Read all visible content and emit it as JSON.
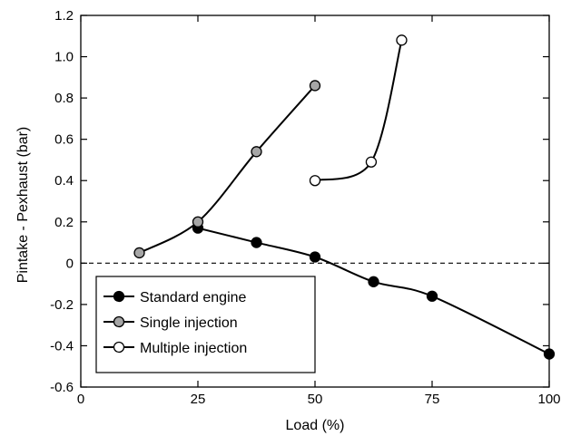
{
  "chart_data": {
    "type": "line",
    "title": "",
    "xlabel": "Load (%)",
    "ylabel": "Pintake - Pexhaust (bar)",
    "xlim": [
      0,
      100
    ],
    "ylim": [
      -0.6,
      1.2
    ],
    "x_ticks": [
      0,
      25,
      50,
      75,
      100
    ],
    "x_tick_labels": [
      "0",
      "25",
      "50",
      "75",
      "100"
    ],
    "y_ticks": [
      -0.6,
      -0.4,
      -0.2,
      0,
      0.2,
      0.4,
      0.6,
      0.8,
      1.0,
      1.2
    ],
    "y_tick_labels": [
      "-0.6",
      "-0.4",
      "-0.2",
      "0",
      "0.2",
      "0.4",
      "0.6",
      "0.8",
      "1.0",
      "1.2"
    ],
    "reference_line": {
      "y": 0,
      "style": "dashed"
    },
    "grid": false,
    "legend_position": "bottom-left",
    "series": [
      {
        "name": "Standard engine",
        "marker": "filled-circle",
        "marker_fill": "#000000",
        "x": [
          25,
          37.5,
          50,
          62.5,
          75,
          100
        ],
        "y": [
          0.17,
          0.1,
          0.03,
          -0.09,
          -0.16,
          -0.44
        ]
      },
      {
        "name": "Single injection",
        "marker": "gray-circle",
        "marker_fill": "#a6a6a6",
        "x": [
          12.5,
          25,
          37.5,
          50
        ],
        "y": [
          0.05,
          0.2,
          0.54,
          0.86
        ]
      },
      {
        "name": "Multiple injection",
        "marker": "open-circle",
        "marker_fill": "#ffffff",
        "x": [
          50,
          62,
          68.5
        ],
        "y": [
          0.4,
          0.49,
          1.08
        ]
      }
    ]
  }
}
